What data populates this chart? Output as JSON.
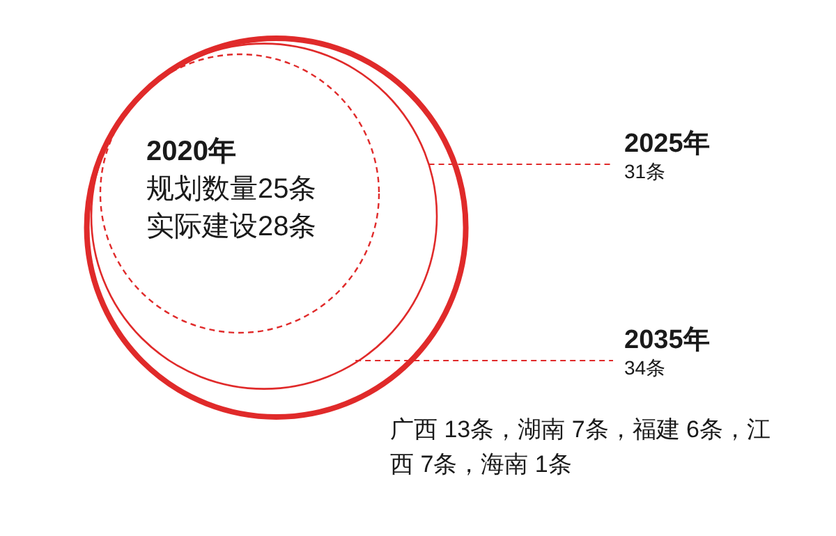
{
  "chart_data": {
    "type": "other",
    "color": "#e02a2a",
    "categories": [
      "2020年",
      "2025年",
      "2035年"
    ],
    "values": [
      25,
      31,
      34
    ],
    "value_labels": [
      "规划数量25条",
      "31条",
      "34条"
    ],
    "annotations": [
      "实际建设28条",
      "广西 13条，湖南 7条，福建 6条，江西 7条，海南 1条"
    ]
  }
}
